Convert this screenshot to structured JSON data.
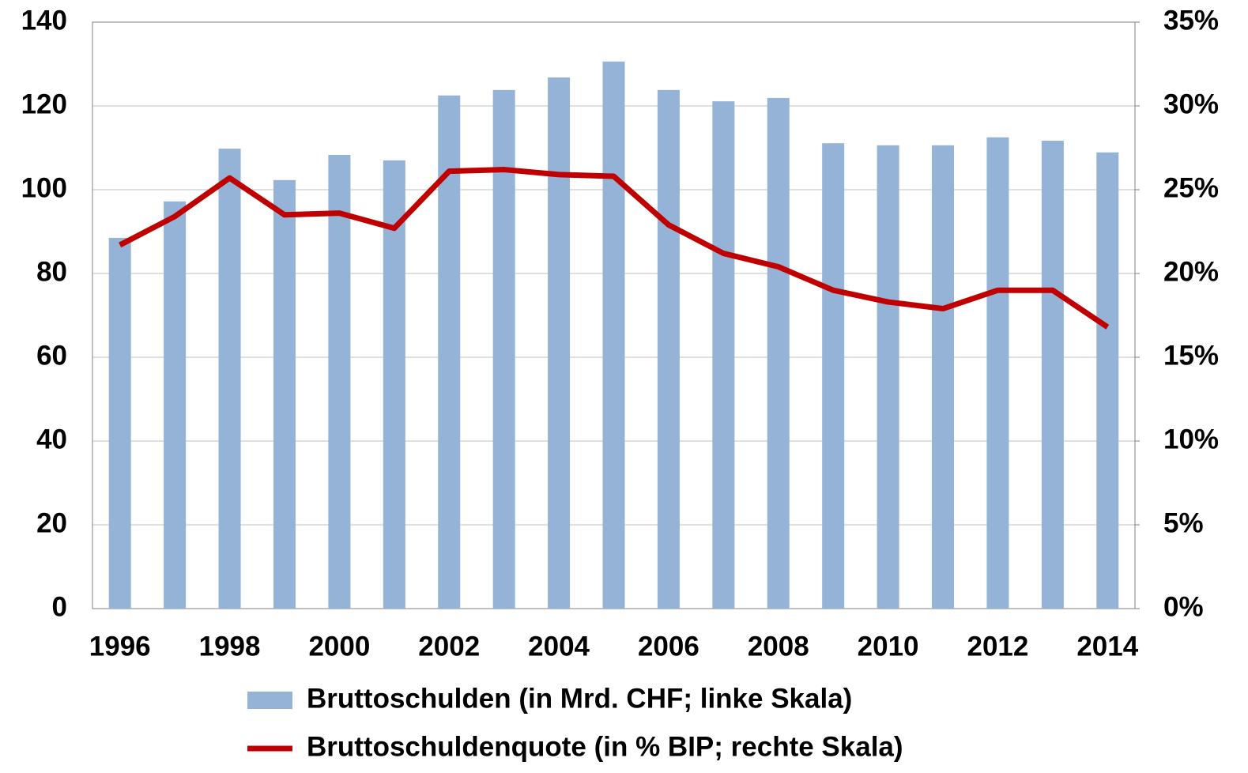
{
  "chart_data": {
    "type": "bar-line",
    "categories": [
      "1996",
      null,
      "1998",
      null,
      "2000",
      null,
      "2002",
      null,
      "2004",
      null,
      "2006",
      null,
      "2008",
      null,
      "2010",
      null,
      "2012",
      null,
      "2014"
    ],
    "series": [
      {
        "name": "Bruttoschulden (in Mrd. CHF; linke Skala)",
        "type": "bar",
        "color": "#95b3d7",
        "values": [
          88.5,
          97.2,
          109.8,
          102.3,
          108.3,
          107.0,
          122.5,
          123.8,
          126.8,
          130.6,
          123.8,
          121.1,
          121.9,
          111.1,
          110.6,
          110.6,
          112.5,
          111.7,
          108.9
        ]
      },
      {
        "name": "Bruttoschuldenquote (in % BIP; rechte Skala)",
        "type": "line",
        "axis": "y2",
        "color": "#c00000",
        "values": [
          21.7,
          23.4,
          25.7,
          23.5,
          23.6,
          22.7,
          26.1,
          26.2,
          25.9,
          25.8,
          22.9,
          21.2,
          20.4,
          19.0,
          18.3,
          17.9,
          19.0,
          19.0,
          16.8
        ]
      }
    ],
    "ylim": [
      0,
      140
    ],
    "yticks": [
      0,
      20,
      40,
      60,
      80,
      100,
      120,
      140
    ],
    "y2lim": [
      0,
      35
    ],
    "y2ticks": [
      {
        "value": 0,
        "label": "0%"
      },
      {
        "value": 5,
        "label": "5%"
      },
      {
        "value": 10,
        "label": "10%"
      },
      {
        "value": 15,
        "label": "15%"
      },
      {
        "value": 20,
        "label": "20%"
      },
      {
        "value": 25,
        "label": "25%"
      },
      {
        "value": 30,
        "label": "30%"
      },
      {
        "value": 35,
        "label": "35%"
      }
    ],
    "grid": true,
    "legend": "bottom"
  }
}
